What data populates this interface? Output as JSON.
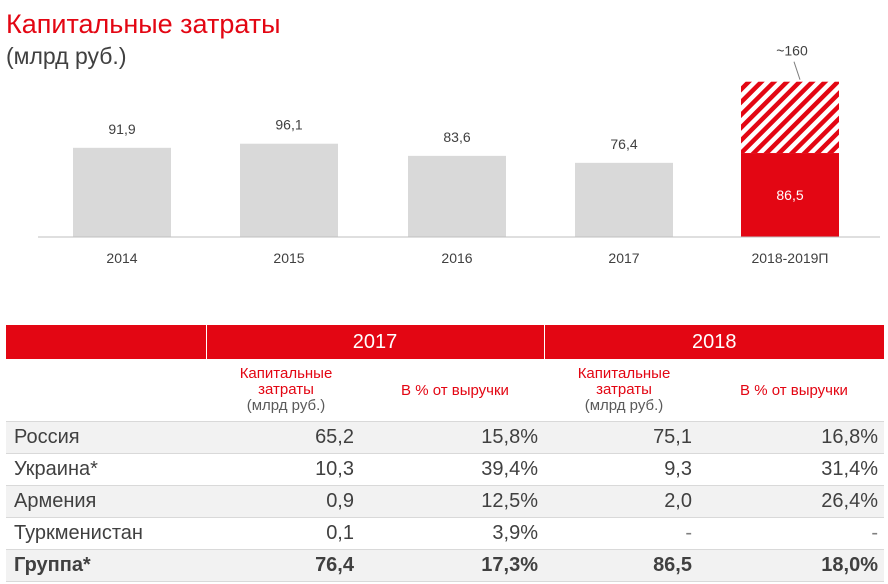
{
  "title": "Капитальные затраты",
  "subtitle": "(млрд руб.)",
  "colors": {
    "accent": "#e30613",
    "bar": "#d9d9d9",
    "text": "#404040"
  },
  "chart_data": {
    "type": "bar",
    "title": "Капитальные затраты",
    "subtitle": "(млрд руб.)",
    "categories": [
      "2014",
      "2015",
      "2016",
      "2017",
      "2018-2019П"
    ],
    "values": [
      91.9,
      96.1,
      83.6,
      76.4,
      86.5
    ],
    "labels": [
      "91,9",
      "96,1",
      "83,6",
      "76,4",
      "86,5"
    ],
    "forecast": {
      "category": "2018-2019П",
      "total": 160,
      "label": "~160",
      "pattern": "hatched"
    },
    "ylim": [
      0,
      170
    ],
    "grid": false,
    "legend": "none"
  },
  "table": {
    "years": [
      "2017",
      "2018"
    ],
    "col_capex": [
      "Капитальные",
      "затраты"
    ],
    "col_capex_unit": "(млрд руб.)",
    "col_pct": "В % от выручки",
    "rows": [
      {
        "name": "Россия",
        "c17": "65,2",
        "p17": "15,8%",
        "c18": "75,1",
        "p18": "16,8%"
      },
      {
        "name": "Украина*",
        "c17": "10,3",
        "p17": "39,4%",
        "c18": "9,3",
        "p18": "31,4%"
      },
      {
        "name": "Армения",
        "c17": "0,9",
        "p17": "12,5%",
        "c18": "2,0",
        "p18": "26,4%"
      },
      {
        "name": "Туркменистан",
        "c17": "0,1",
        "p17": "3,9%",
        "c18": "-",
        "p18": "-"
      },
      {
        "name": "Группа*",
        "c17": "76,4",
        "p17": "17,3%",
        "c18": "86,5",
        "p18": "18,0%"
      }
    ]
  }
}
